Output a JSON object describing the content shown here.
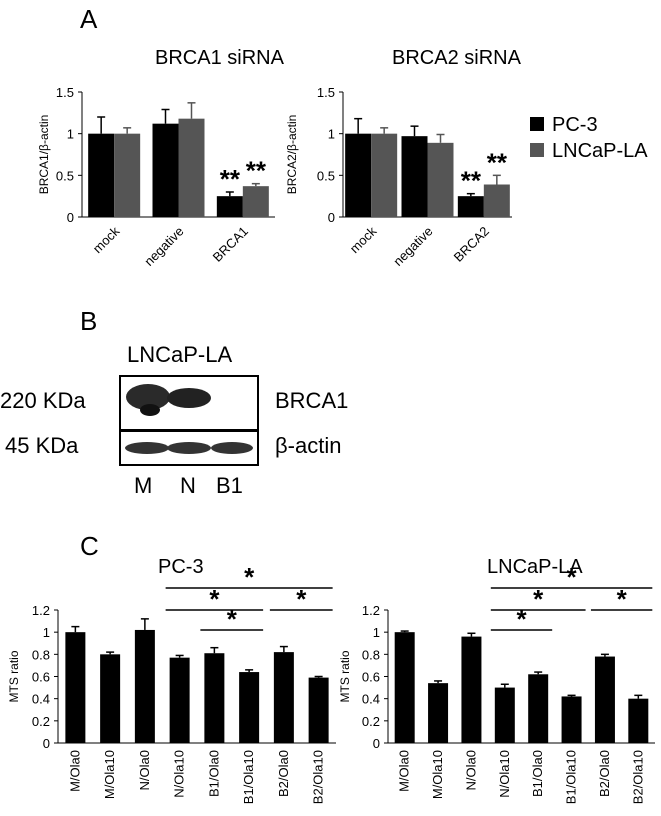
{
  "panels": {
    "a": "A",
    "b": "B",
    "c": "C"
  },
  "chart_data": [
    {
      "type": "bar",
      "title": "BRCA1 siRNA",
      "ylabel": "BRCA1/β-actin",
      "categories": [
        "mock",
        "negative",
        "BRCA1"
      ],
      "series": [
        {
          "name": "PC-3",
          "values": [
            1.0,
            1.12,
            0.25
          ],
          "errors": [
            0.2,
            0.17,
            0.05
          ]
        },
        {
          "name": "LNCaP-LA",
          "values": [
            1.0,
            1.18,
            0.37
          ],
          "errors": [
            0.07,
            0.19,
            0.03
          ]
        }
      ],
      "ylim": [
        0,
        1.5
      ],
      "yticks": [
        "0",
        "0.5",
        "1",
        "1.5"
      ],
      "significance": [
        "",
        "",
        "**"
      ]
    },
    {
      "type": "bar",
      "title": "BRCA2 siRNA",
      "ylabel": "BRCA2/β-actin",
      "categories": [
        "mock",
        "negative",
        "BRCA2"
      ],
      "series": [
        {
          "name": "PC-3",
          "values": [
            1.0,
            0.97,
            0.25
          ],
          "errors": [
            0.18,
            0.12,
            0.03
          ]
        },
        {
          "name": "LNCaP-LA",
          "values": [
            1.0,
            0.89,
            0.39
          ],
          "errors": [
            0.07,
            0.1,
            0.11
          ]
        }
      ],
      "ylim": [
        0,
        1.5
      ],
      "yticks": [
        "0",
        "0.5",
        "1",
        "1.5"
      ],
      "significance": [
        "",
        "",
        "**"
      ]
    },
    {
      "type": "bar",
      "title": "PC-3",
      "ylabel": "MTS ratio",
      "categories": [
        "M/Ola0",
        "M/Ola10",
        "N/Ola0",
        "N/Ola10",
        "B1/Ola0",
        "B1/Ola10",
        "B2/Ola0",
        "B2/Ola10"
      ],
      "series": [
        {
          "values": [
            1.0,
            0.8,
            1.02,
            0.77,
            0.81,
            0.64,
            0.82,
            0.59
          ],
          "errors": [
            0.05,
            0.02,
            0.1,
            0.02,
            0.05,
            0.02,
            0.05,
            0.01
          ]
        }
      ],
      "ylim": [
        0,
        1.2
      ],
      "yticks": [
        "0",
        "0.2",
        "0.4",
        "0.6",
        "0.8",
        "1",
        "1.2"
      ],
      "comparisons": [
        [
          3,
          7
        ],
        [
          3,
          5
        ],
        [
          4,
          5
        ],
        [
          6,
          7
        ]
      ]
    },
    {
      "type": "bar",
      "title": "LNCaP-LA",
      "ylabel": "MTS ratio",
      "categories": [
        "M/Ola0",
        "M/Ola10",
        "N/Ola0",
        "N/Ola10",
        "B1/Ola0",
        "B1/Ola10",
        "B2/Ola0",
        "B2/Ola10"
      ],
      "series": [
        {
          "values": [
            1.0,
            0.54,
            0.96,
            0.5,
            0.62,
            0.42,
            0.78,
            0.4
          ],
          "errors": [
            0.01,
            0.02,
            0.03,
            0.03,
            0.02,
            0.01,
            0.02,
            0.03
          ]
        }
      ],
      "ylim": [
        0,
        1.2
      ],
      "yticks": [
        "0",
        "0.2",
        "0.4",
        "0.6",
        "0.8",
        "1",
        "1.2"
      ],
      "comparisons": [
        [
          3,
          7
        ],
        [
          3,
          5
        ],
        [
          3,
          4
        ],
        [
          6,
          7
        ]
      ]
    }
  ],
  "legend": {
    "items": [
      {
        "label": "PC-3",
        "color": "#000000"
      },
      {
        "label": "LNCaP-LA",
        "color": "#555555"
      }
    ]
  },
  "blot": {
    "title": "LNCaP-LA",
    "rows": [
      {
        "left_label": "220 KDa",
        "right_label": "BRCA1"
      },
      {
        "left_label": "45 KDa",
        "right_label": "β-actin"
      }
    ],
    "lanes": [
      "M",
      "N",
      "B1"
    ]
  },
  "colors": {
    "series1": "#000000",
    "series2": "#555555",
    "mts": "#000000"
  },
  "star_text": "*"
}
